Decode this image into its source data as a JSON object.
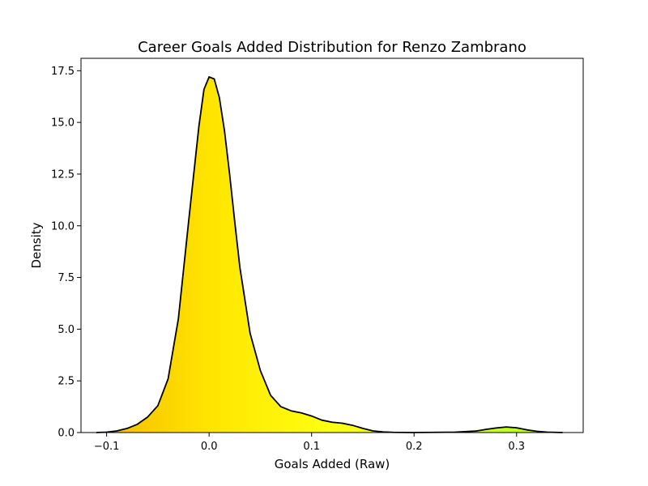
{
  "chart_data": {
    "type": "area",
    "title": "Career Goals Added Distribution for Renzo Zambrano",
    "xlabel": "Goals Added (Raw)",
    "ylabel": "Density",
    "xlim": [
      -0.125,
      0.365
    ],
    "ylim": [
      0,
      18.1
    ],
    "xticks": [
      -0.1,
      0.0,
      0.1,
      0.2,
      0.3
    ],
    "xtick_labels": [
      "−0.1",
      "0.0",
      "0.1",
      "0.2",
      "0.3"
    ],
    "yticks": [
      0.0,
      2.5,
      5.0,
      7.5,
      10.0,
      12.5,
      15.0,
      17.5
    ],
    "ytick_labels": [
      "0.0",
      "2.5",
      "5.0",
      "7.5",
      "10.0",
      "12.5",
      "15.0",
      "17.5"
    ],
    "grid": false,
    "legend": "none",
    "fill_gradient": [
      "#f7b900",
      "#ffe600",
      "#ffff10",
      "#d8ff20",
      "#a8ff20"
    ],
    "line_color": "#000000",
    "series": [
      {
        "x": [
          -0.11,
          -0.1,
          -0.09,
          -0.08,
          -0.07,
          -0.06,
          -0.05,
          -0.04,
          -0.03,
          -0.02,
          -0.01,
          -0.005,
          0.0,
          0.005,
          0.01,
          0.015,
          0.02,
          0.025,
          0.03,
          0.04,
          0.05,
          0.06,
          0.07,
          0.08,
          0.09,
          0.1,
          0.11,
          0.12,
          0.13,
          0.14,
          0.15,
          0.16,
          0.17,
          0.18,
          0.2,
          0.22,
          0.24,
          0.26,
          0.27,
          0.28,
          0.29,
          0.3,
          0.31,
          0.32,
          0.33,
          0.345
        ],
        "y": [
          0.0,
          0.02,
          0.08,
          0.2,
          0.4,
          0.75,
          1.3,
          2.6,
          5.5,
          10.2,
          14.8,
          16.6,
          17.2,
          17.1,
          16.2,
          14.6,
          12.5,
          10.2,
          8.0,
          4.8,
          3.0,
          1.8,
          1.25,
          1.05,
          0.95,
          0.8,
          0.6,
          0.5,
          0.45,
          0.35,
          0.2,
          0.08,
          0.03,
          0.01,
          0.0,
          0.01,
          0.02,
          0.07,
          0.15,
          0.22,
          0.27,
          0.23,
          0.13,
          0.06,
          0.02,
          0.0
        ]
      }
    ]
  }
}
